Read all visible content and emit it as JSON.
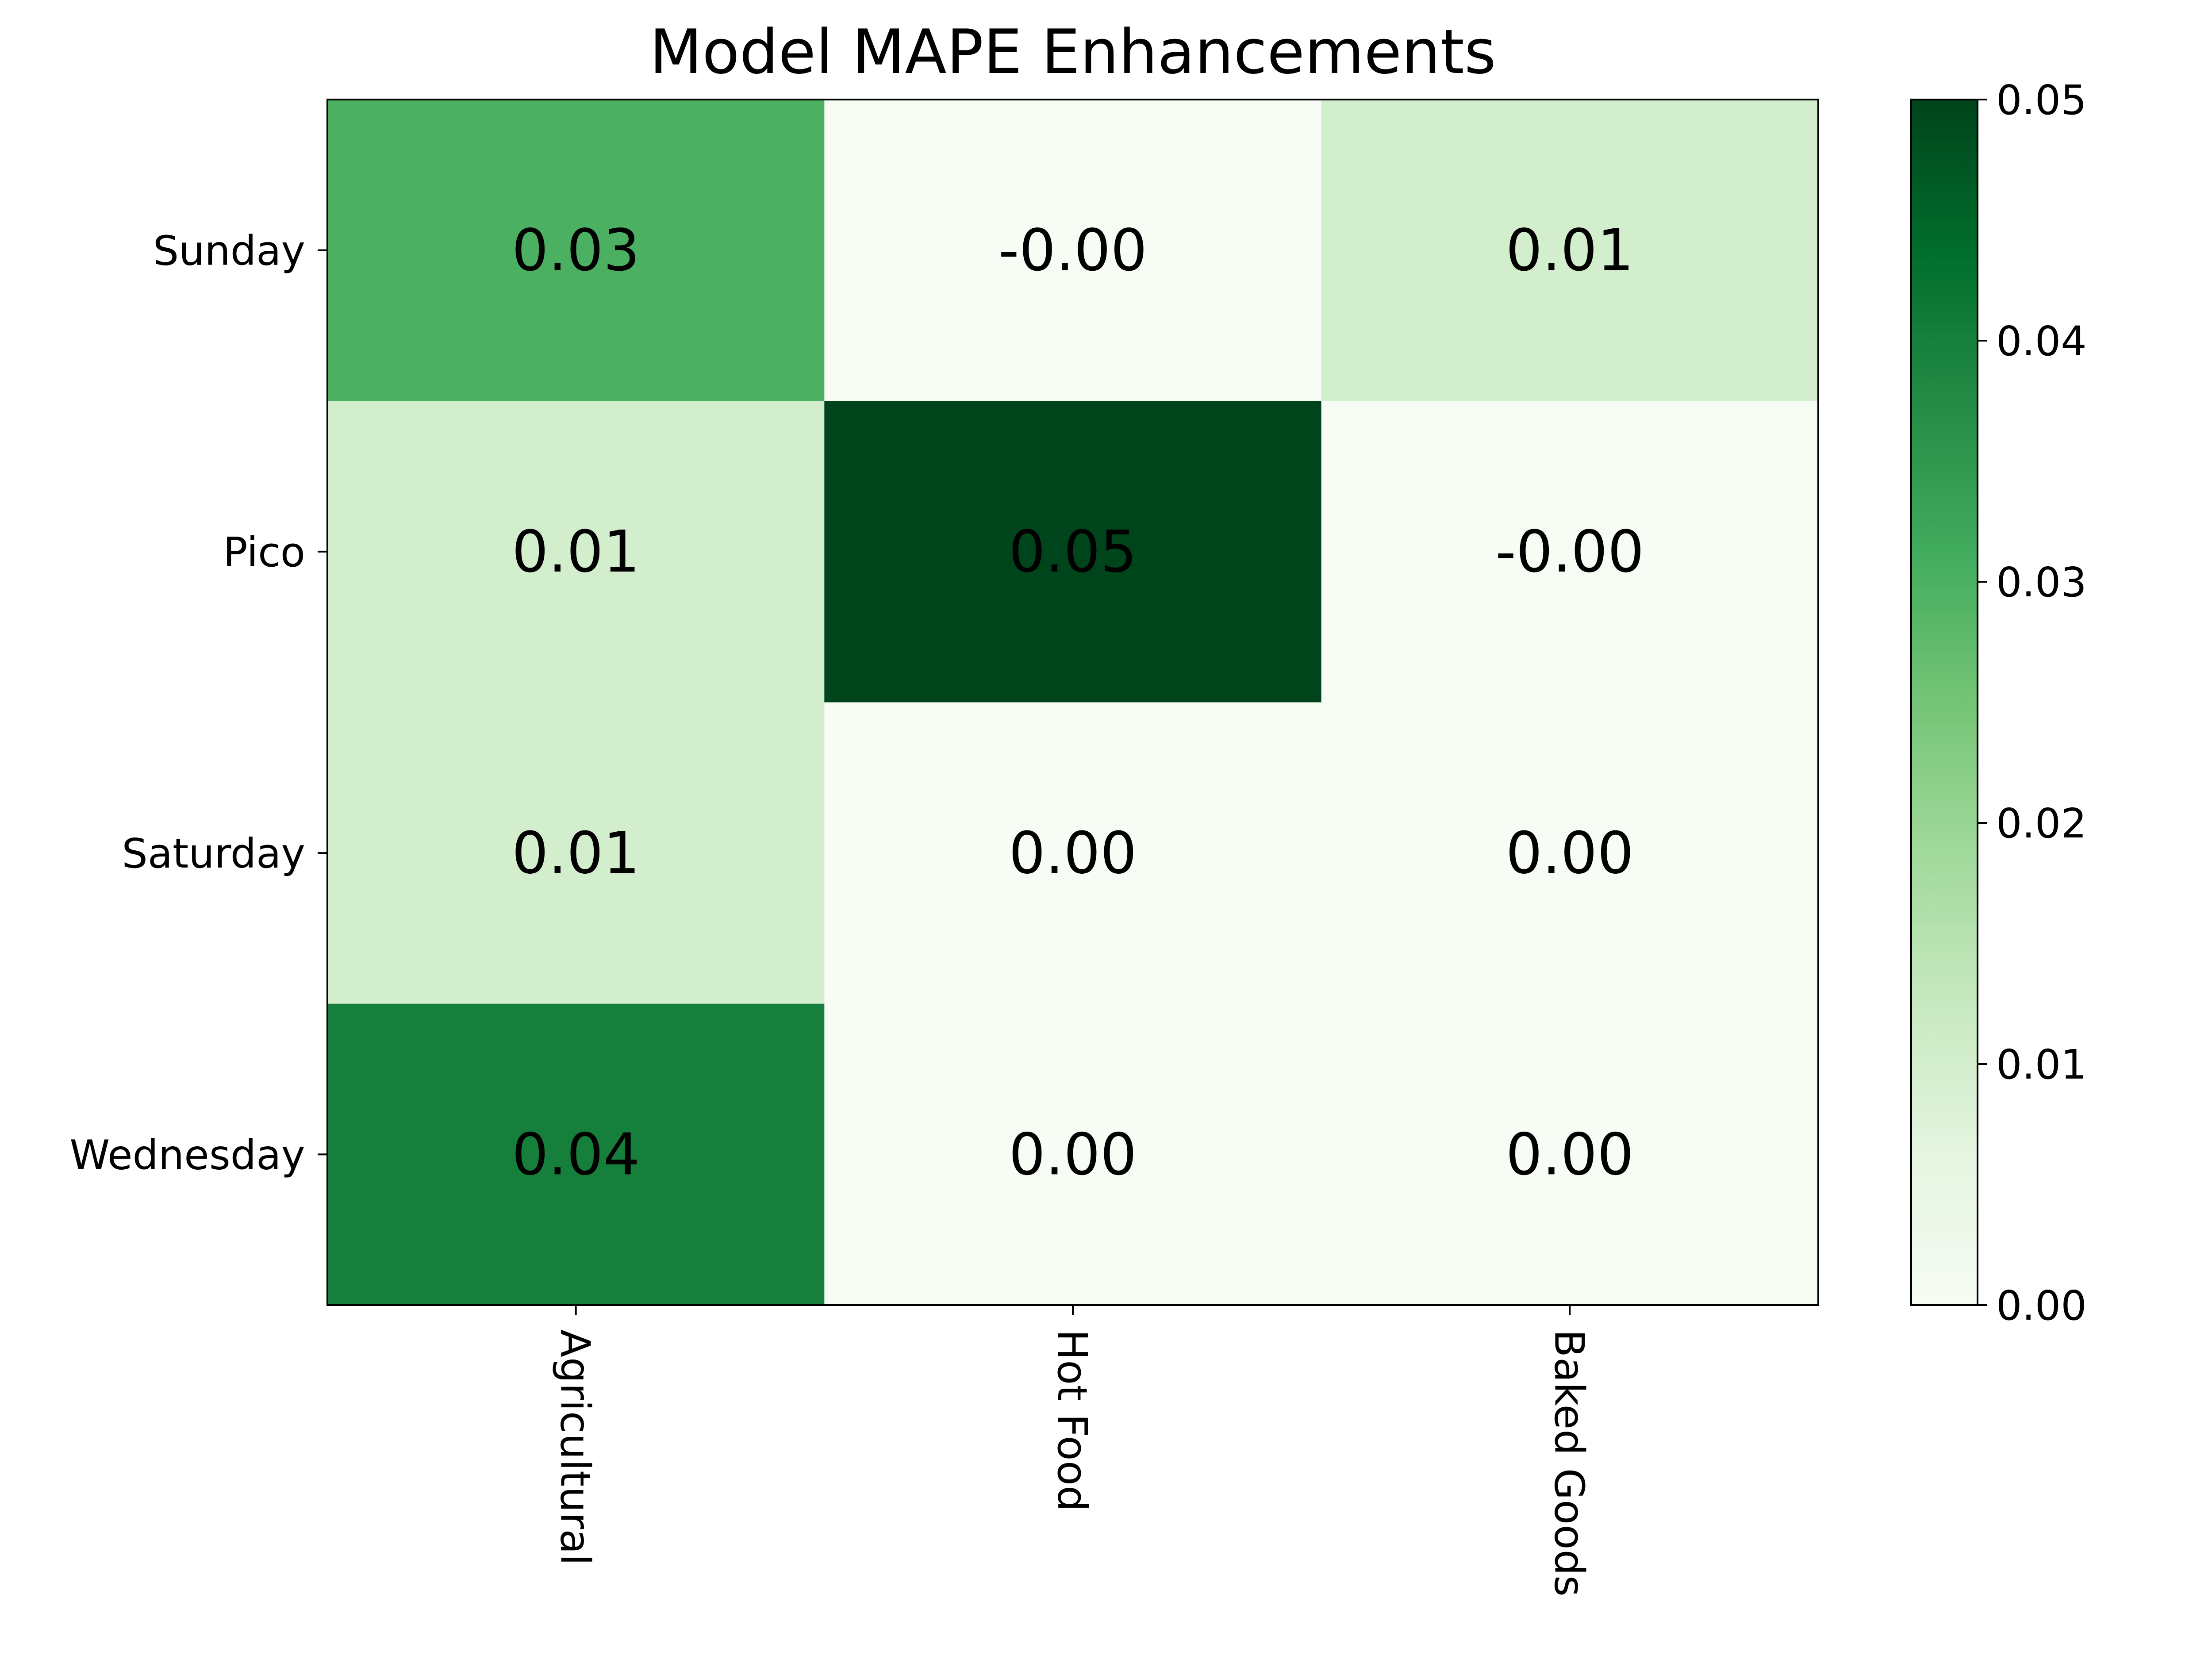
{
  "chart_data": {
    "type": "heatmap",
    "title": "Model MAPE Enhancements",
    "xlabel": "",
    "ylabel": "",
    "x_categories": [
      "Agricultural",
      "Hot Food",
      "Baked Goods"
    ],
    "y_categories": [
      "Sunday",
      "Pico",
      "Saturday",
      "Wednesday"
    ],
    "values": [
      [
        0.03,
        0.0,
        0.01
      ],
      [
        0.01,
        0.05,
        0.0
      ],
      [
        0.01,
        0.0,
        0.0
      ],
      [
        0.04,
        0.0,
        0.0
      ]
    ],
    "cell_labels": [
      [
        "0.03",
        "-0.00",
        "0.01"
      ],
      [
        "0.01",
        "0.05",
        "-0.00"
      ],
      [
        "0.01",
        "0.00",
        "0.00"
      ],
      [
        "0.04",
        "0.00",
        "0.00"
      ]
    ],
    "x_tick_rotation": "vertical",
    "colormap": "Greens",
    "colorbar": {
      "range": [
        0.0,
        0.05
      ],
      "ticks": [
        "0.00",
        "0.01",
        "0.02",
        "0.03",
        "0.04",
        "0.05"
      ],
      "placement": "right"
    },
    "grid": false
  }
}
